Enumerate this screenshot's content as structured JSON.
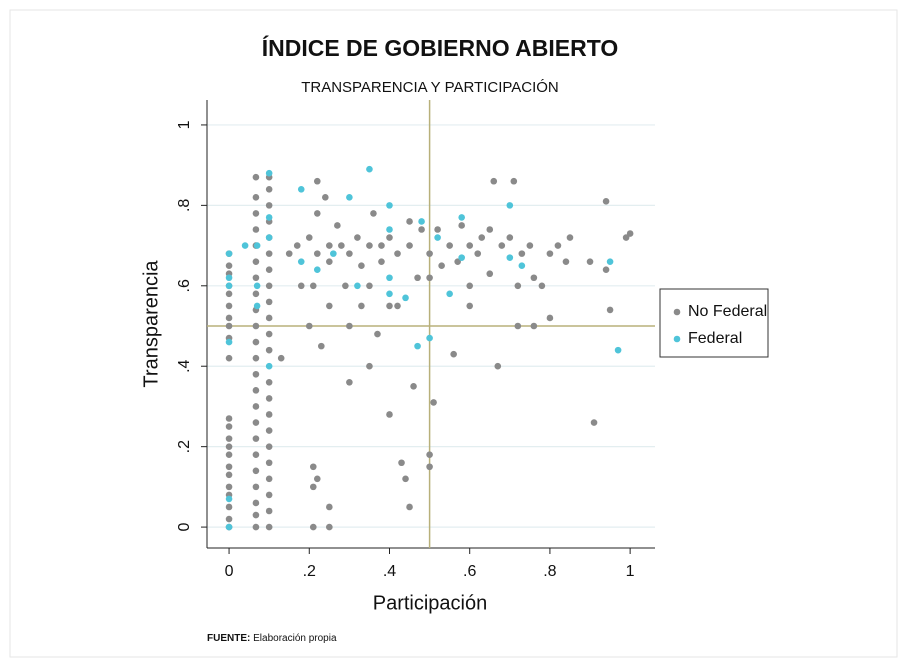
{
  "chart_data": {
    "type": "scatter",
    "title": "ÍNDICE DE GOBIERNO ABIERTO",
    "subtitle": "TRANSPARENCIA Y PARTICIPACIÓN",
    "xlabel": "Participación",
    "ylabel": "Transparencia",
    "source_label": "FUENTE:",
    "source": "Elaboración propia",
    "xlim": [
      -0.055,
      1.062
    ],
    "ylim": [
      -0.052,
      1.062
    ],
    "xticks": [
      0,
      {
        "value": 0.2,
        "label": ".2"
      },
      {
        "value": 0.4,
        "label": ".4"
      },
      {
        "value": 0.6,
        "label": ".6"
      },
      {
        "value": 0.8,
        "label": ".8"
      },
      1
    ],
    "yticks": [
      0,
      {
        "value": 0.2,
        "label": ".2"
      },
      {
        "value": 0.4,
        "label": ".4"
      },
      {
        "value": 0.6,
        "label": ".6"
      },
      {
        "value": 0.8,
        "label": ".8"
      },
      1
    ],
    "grid": true,
    "reference_lines": {
      "x": 0.5,
      "y": 0.5,
      "color": "#b8b07a"
    },
    "legend": "right",
    "series": [
      {
        "name": "No Federal",
        "color": "#8a8a8a",
        "x": [
          0,
          0,
          0,
          0,
          0,
          0,
          0,
          0,
          0,
          0,
          0,
          0,
          0,
          0,
          0,
          0,
          0,
          0,
          0,
          0,
          0,
          0,
          0.067,
          0.067,
          0.067,
          0.067,
          0.067,
          0.067,
          0.067,
          0.067,
          0.067,
          0.067,
          0.067,
          0.067,
          0.067,
          0.067,
          0.067,
          0.067,
          0.067,
          0.067,
          0.067,
          0.067,
          0.067,
          0.067,
          0.067,
          0.1,
          0.1,
          0.1,
          0.1,
          0.1,
          0.1,
          0.1,
          0.1,
          0.1,
          0.1,
          0.1,
          0.1,
          0.1,
          0.1,
          0.1,
          0.1,
          0.1,
          0.1,
          0.1,
          0.1,
          0.1,
          0.1,
          0.2,
          0.21,
          0.21,
          0.21,
          0.22,
          0.2,
          0.21,
          0.22,
          0.22,
          0.22,
          0.23,
          0.25,
          0.25,
          0.25,
          0.25,
          0.25,
          0.24,
          0.27,
          0.28,
          0.29,
          0.3,
          0.3,
          0.3,
          0.32,
          0.33,
          0.35,
          0.35,
          0.36,
          0.37,
          0.38,
          0.38,
          0.4,
          0.4,
          0.4,
          0.42,
          0.43,
          0.44,
          0.45,
          0.46,
          0.45,
          0.47,
          0.48,
          0.5,
          0.5,
          0.5,
          0.5,
          0.51,
          0.52,
          0.53,
          0.55,
          0.56,
          0.57,
          0.58,
          0.6,
          0.6,
          0.62,
          0.63,
          0.65,
          0.65,
          0.66,
          0.67,
          0.68,
          0.7,
          0.71,
          0.72,
          0.72,
          0.73,
          0.75,
          0.76,
          0.76,
          0.78,
          0.8,
          0.8,
          0.82,
          0.84,
          0.85,
          0.9,
          0.91,
          0.94,
          0.95,
          0.94,
          0.99,
          1.0,
          0.6,
          0.45,
          0.42,
          0.15,
          0.17,
          0.13,
          0.33,
          0.35,
          0.18
        ],
        "values": [
          0,
          0.02,
          0.05,
          0.08,
          0.1,
          0.13,
          0.15,
          0.18,
          0.2,
          0.22,
          0.25,
          0.27,
          0.42,
          0.47,
          0.5,
          0.52,
          0.55,
          0.58,
          0.6,
          0.63,
          0.65,
          0.68,
          0,
          0.03,
          0.06,
          0.1,
          0.14,
          0.18,
          0.22,
          0.26,
          0.3,
          0.34,
          0.38,
          0.42,
          0.46,
          0.5,
          0.54,
          0.58,
          0.62,
          0.66,
          0.7,
          0.74,
          0.78,
          0.82,
          0.87,
          0,
          0.04,
          0.08,
          0.12,
          0.16,
          0.2,
          0.24,
          0.28,
          0.32,
          0.36,
          0.44,
          0.48,
          0.52,
          0.56,
          0.6,
          0.64,
          0.68,
          0.72,
          0.76,
          0.8,
          0.84,
          0.87,
          0.72,
          0,
          0.1,
          0.15,
          0.12,
          0.5,
          0.6,
          0.68,
          0.78,
          0.86,
          0.45,
          0,
          0.05,
          0.55,
          0.7,
          0.66,
          0.82,
          0.75,
          0.7,
          0.6,
          0.68,
          0.5,
          0.36,
          0.72,
          0.65,
          0.7,
          0.6,
          0.78,
          0.48,
          0.66,
          0.7,
          0.72,
          0.55,
          0.28,
          0.68,
          0.16,
          0.12,
          0.05,
          0.35,
          0.7,
          0.62,
          0.74,
          0.68,
          0.62,
          0.18,
          0.15,
          0.31,
          0.74,
          0.65,
          0.7,
          0.43,
          0.66,
          0.75,
          0.7,
          0.6,
          0.68,
          0.72,
          0.74,
          0.63,
          0.86,
          0.4,
          0.7,
          0.72,
          0.86,
          0.5,
          0.6,
          0.68,
          0.7,
          0.5,
          0.62,
          0.6,
          0.52,
          0.68,
          0.7,
          0.66,
          0.72,
          0.66,
          0.26,
          0.81,
          0.54,
          0.64,
          0.72,
          0.73,
          0.55,
          0.76,
          0.55,
          0.68,
          0.7,
          0.42,
          0.55,
          0.4,
          0.6
        ]
      },
      {
        "name": "Federal",
        "color": "#4fc4d9",
        "x": [
          0,
          0,
          0,
          0,
          0,
          0,
          0.04,
          0.07,
          0.07,
          0.07,
          0.1,
          0.1,
          0.1,
          0.1,
          0.18,
          0.18,
          0.22,
          0.26,
          0.3,
          0.32,
          0.35,
          0.4,
          0.4,
          0.4,
          0.4,
          0.44,
          0.47,
          0.48,
          0.5,
          0.55,
          0.58,
          0.58,
          0.7,
          0.7,
          0.73,
          0.95,
          0.97,
          0.52
        ],
        "values": [
          0,
          0.07,
          0.46,
          0.6,
          0.62,
          0.68,
          0.7,
          0.7,
          0.55,
          0.6,
          0.88,
          0.77,
          0.72,
          0.4,
          0.84,
          0.66,
          0.64,
          0.68,
          0.82,
          0.6,
          0.89,
          0.8,
          0.74,
          0.62,
          0.58,
          0.57,
          0.45,
          0.76,
          0.47,
          0.58,
          0.77,
          0.67,
          0.8,
          0.67,
          0.65,
          0.66,
          0.44,
          0.72
        ]
      }
    ]
  }
}
